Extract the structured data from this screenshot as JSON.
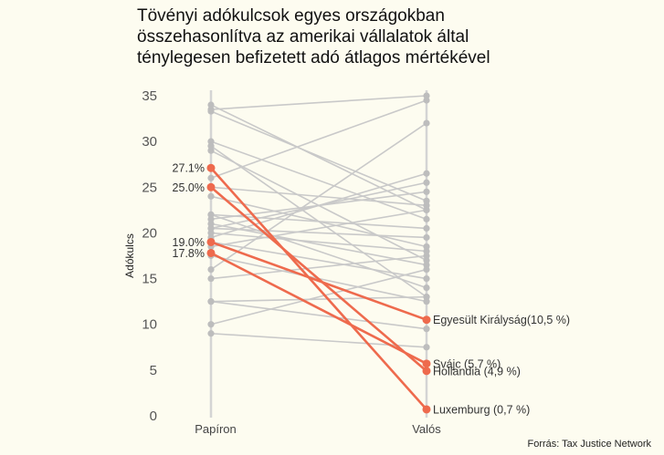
{
  "title": "Tövényi adókulcsok egyes országokban\nösszehasonlítva az amerikai vállalatok által\nténylegesen befizetett adó átlagos mértékével",
  "source": "Forrás: Tax Justice Network",
  "chart_data": {
    "type": "slope",
    "categories": [
      "Papíron",
      "Valós"
    ],
    "ylabel": "Adókulcs",
    "ylim": [
      0,
      35
    ],
    "yticks": [
      0,
      5,
      10,
      15,
      20,
      25,
      30,
      35
    ],
    "grid": false,
    "colors": {
      "background": "#fdfcf0",
      "highlight": "#ee6a4d",
      "gray": "#c9c9c9",
      "gray_dot": "#bdbdbd"
    },
    "gray_series": [
      {
        "values": [
          34,
          22.5
        ]
      },
      {
        "values": [
          33.5,
          35
        ]
      },
      {
        "values": [
          33.3,
          23.5
        ]
      },
      {
        "values": [
          30,
          21.5
        ]
      },
      {
        "values": [
          29.5,
          13
        ]
      },
      {
        "values": [
          29,
          17
        ]
      },
      {
        "values": [
          26,
          34.5
        ]
      },
      {
        "values": [
          25,
          23
        ]
      },
      {
        "values": [
          24,
          18.5
        ]
      },
      {
        "values": [
          22,
          20.5
        ]
      },
      {
        "values": [
          21.5,
          24.5
        ]
      },
      {
        "values": [
          21,
          16.5
        ]
      },
      {
        "values": [
          20.5,
          19.5
        ]
      },
      {
        "values": [
          20,
          18
        ]
      },
      {
        "values": [
          19.5,
          26.5
        ]
      },
      {
        "values": [
          19,
          15
        ]
      },
      {
        "values": [
          18.5,
          22.5
        ]
      },
      {
        "values": [
          17.5,
          12.5
        ]
      },
      {
        "values": [
          16,
          32
        ]
      },
      {
        "values": [
          15,
          17.5
        ]
      },
      {
        "values": [
          12.5,
          13
        ]
      },
      {
        "values": [
          12.5,
          9.5
        ]
      },
      {
        "values": [
          10,
          16
        ]
      },
      {
        "values": [
          9,
          7.5
        ]
      },
      {
        "values": [
          20.5,
          25.5
        ]
      },
      {
        "values": [
          22,
          14
        ]
      }
    ],
    "highlight_series": [
      {
        "name": "Egyesült Királyság",
        "values": [
          19,
          10.5
        ],
        "left_label": "19.0%",
        "right_label": "Egyesült Királyság(10,5 %)"
      },
      {
        "name": "Svájc",
        "values": [
          17.8,
          5.7
        ],
        "left_label": "17.8%",
        "right_label": "Svájc (5,7 %)"
      },
      {
        "name": "Hollandia",
        "values": [
          25,
          4.9
        ],
        "left_label": "25.0%",
        "right_label": "Hollandia (4,9 %)"
      },
      {
        "name": "Luxemburg",
        "values": [
          27.1,
          0.7
        ],
        "left_label": "27.1%",
        "right_label": "Luxemburg (0,7 %)"
      }
    ]
  }
}
